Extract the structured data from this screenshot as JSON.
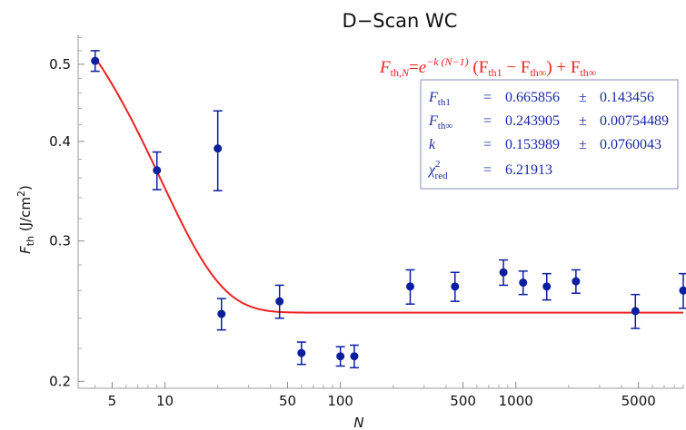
{
  "chart_data": {
    "type": "scatter",
    "title": "D−Scan WC",
    "xlabel": "N",
    "ylabel": {
      "var": "F",
      "sub": "th",
      "unit_pre": " (J/cm",
      "unit_sup": "2",
      "unit_post": ")"
    },
    "x_scale": "log",
    "y_scale": "log",
    "xlim": [
      3.2,
      9000
    ],
    "ylim": [
      0.196,
      0.545
    ],
    "x_ticks": [
      5,
      10,
      50,
      100,
      500,
      1000,
      5000
    ],
    "x_tick_labels": [
      "5",
      "10",
      "50",
      "100",
      "500",
      "1000",
      "5000"
    ],
    "y_ticks": [
      0.2,
      0.3,
      0.4,
      0.5
    ],
    "y_tick_labels": [
      "0.2",
      "0.3",
      "0.4",
      "0.5"
    ],
    "grid": false,
    "points": [
      {
        "x": 4,
        "y": 0.505,
        "err": 0.015
      },
      {
        "x": 9,
        "y": 0.368,
        "err": 0.02
      },
      {
        "x": 20,
        "y": 0.392,
        "err": 0.045
      },
      {
        "x": 21,
        "y": 0.243,
        "err": 0.011
      },
      {
        "x": 45,
        "y": 0.252,
        "err": 0.012
      },
      {
        "x": 60,
        "y": 0.217,
        "err": 0.007
      },
      {
        "x": 100,
        "y": 0.215,
        "err": 0.006
      },
      {
        "x": 120,
        "y": 0.215,
        "err": 0.007
      },
      {
        "x": 250,
        "y": 0.263,
        "err": 0.013
      },
      {
        "x": 450,
        "y": 0.263,
        "err": 0.011
      },
      {
        "x": 850,
        "y": 0.274,
        "err": 0.01
      },
      {
        "x": 1100,
        "y": 0.266,
        "err": 0.009
      },
      {
        "x": 1500,
        "y": 0.263,
        "err": 0.01
      },
      {
        "x": 2200,
        "y": 0.267,
        "err": 0.009
      },
      {
        "x": 4800,
        "y": 0.245,
        "err": 0.012
      },
      {
        "x": 9000,
        "y": 0.26,
        "err": 0.013
      }
    ],
    "fit": {
      "color": "#ee2222",
      "Fth1": 0.665856,
      "FthInf": 0.243905,
      "k": 0.153989
    },
    "point_color": "#0a1e9e",
    "equation": {
      "lhs_var": "F",
      "lhs_sub": "th,",
      "lhs_sub_it": "N",
      "eq": "=",
      "e": "e",
      "exp": "−k (N−1)",
      "mid": " (F",
      "sub1": "th1",
      "minus": " − F",
      "sub2": "th∞",
      "close": ") + F",
      "sub3": "th∞"
    },
    "fit_table": [
      {
        "sym": "F",
        "sub": "th1",
        "eq": "=",
        "val": "0.665856",
        "pm": "±",
        "err": "0.143456"
      },
      {
        "sym": "F",
        "sub": "th∞",
        "eq": "=",
        "val": "0.243905",
        "pm": "±",
        "err": "0.00754489"
      },
      {
        "sym": "k",
        "sub": "",
        "eq": "=",
        "val": "0.153989",
        "pm": "±",
        "err": "0.0760043"
      },
      {
        "sym": "χ",
        "sup": "2",
        "sub": "red",
        "eq": "=",
        "val": "6.21913",
        "pm": "",
        "err": ""
      }
    ]
  }
}
